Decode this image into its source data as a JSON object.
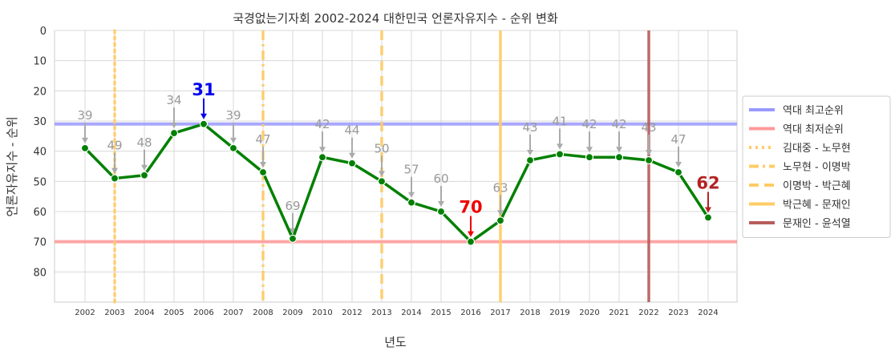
{
  "chart_data": {
    "type": "line",
    "title": "국경없는기자회 2002-2024 대한민국 언론자유지수 - 순위 변화",
    "xlabel": "년도",
    "ylabel": "언론자유지수 - 순위",
    "x": [
      2002,
      2003,
      2004,
      2005,
      2006,
      2007,
      2008,
      2009,
      2010,
      2012,
      2013,
      2014,
      2015,
      2016,
      2017,
      2018,
      2019,
      2020,
      2021,
      2022,
      2023,
      2024
    ],
    "y": [
      39,
      49,
      48,
      34,
      31,
      39,
      47,
      69,
      42,
      44,
      50,
      57,
      60,
      70,
      63,
      43,
      41,
      42,
      42,
      43,
      47,
      62
    ],
    "data_labels": [
      "39",
      "49",
      "48",
      "34",
      "31",
      "39",
      "47",
      "69",
      "42",
      "44",
      "50",
      "57",
      "60",
      "70",
      "63",
      "43",
      "41",
      "42",
      "42",
      "43",
      "47",
      "62"
    ],
    "highlight_labels": {
      "2006": {
        "text": "31",
        "color": "#0000ee"
      },
      "2016": {
        "text": "70",
        "color": "#ee0000"
      },
      "2024": {
        "text": "62",
        "color": "#b22222"
      }
    },
    "x_ticks": [
      "2002",
      "2003",
      "2004",
      "2005",
      "2006",
      "2007",
      "2008",
      "2009",
      "2010",
      "2012",
      "2013",
      "2014",
      "2015",
      "2016",
      "2017",
      "2018",
      "2019",
      "2020",
      "2021",
      "2022",
      "2023",
      "2024"
    ],
    "y_ticks": [
      "0",
      "10",
      "20",
      "30",
      "40",
      "50",
      "60",
      "70",
      "80"
    ],
    "y_tick_values": [
      0,
      10,
      20,
      30,
      40,
      50,
      60,
      70,
      80
    ],
    "ylim": [
      90,
      0
    ],
    "y_inverted": true,
    "grid": true,
    "line_color": "#008000",
    "arrow_color": "#aaaaaa",
    "hlines": [
      {
        "label": "역대 최고순위",
        "value": 31,
        "color": "#9999ff"
      },
      {
        "label": "역대 최저순위",
        "value": 70,
        "color": "#ff9999"
      }
    ],
    "vlines": [
      {
        "label": "김대중 - 노무현",
        "year": 2003,
        "color": "#ffcc66",
        "style": "dotted"
      },
      {
        "label": "노무현 - 이명박",
        "year": 2008,
        "color": "#ffcc66",
        "style": "dashdot"
      },
      {
        "label": "이명박 - 박근혜",
        "year": 2013,
        "color": "#ffcc66",
        "style": "dashed"
      },
      {
        "label": "박근혜 - 문재인",
        "year": 2017,
        "color": "#ffcc66",
        "style": "solid"
      },
      {
        "label": "문재인 - 윤석열",
        "year": 2022,
        "color": "#b85c5c",
        "style": "solid"
      }
    ],
    "legend": {
      "position": "right",
      "items": [
        {
          "label": "역대 최고순위",
          "color": "#9999ff",
          "style": "solid"
        },
        {
          "label": "역대 최저순위",
          "color": "#ff9999",
          "style": "solid"
        },
        {
          "label": "김대중 - 노무현",
          "color": "#ffcc66",
          "style": "dotted"
        },
        {
          "label": "노무현 - 이명박",
          "color": "#ffcc66",
          "style": "dashdot"
        },
        {
          "label": "이명박 - 박근혜",
          "color": "#ffcc66",
          "style": "dashed"
        },
        {
          "label": "박근혜 - 문재인",
          "color": "#ffcc66",
          "style": "solid"
        },
        {
          "label": "문재인 - 윤석열",
          "color": "#b85c5c",
          "style": "solid"
        }
      ]
    }
  }
}
